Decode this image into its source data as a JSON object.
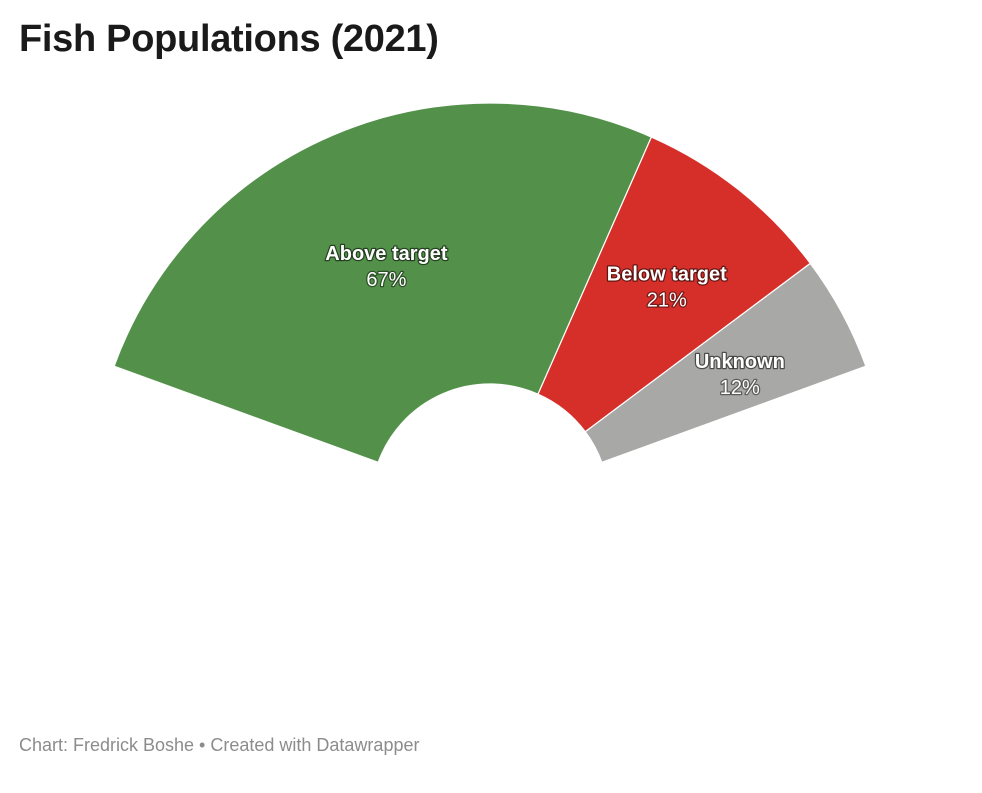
{
  "chart_data": {
    "type": "pie",
    "variant": "half-donut",
    "title": "Fish Populations (2021)",
    "slices": [
      {
        "label": "Above target",
        "value": 67,
        "value_label": "67%",
        "color": "#53914a"
      },
      {
        "label": "Below target",
        "value": 21,
        "value_label": "21%",
        "color": "#d62f2a"
      },
      {
        "label": "Unknown",
        "value": 12,
        "value_label": "12%",
        "color": "#a8a8a6"
      }
    ]
  },
  "footer": {
    "text": "Chart: Fredrick Boshe • Created with Datawrapper"
  }
}
